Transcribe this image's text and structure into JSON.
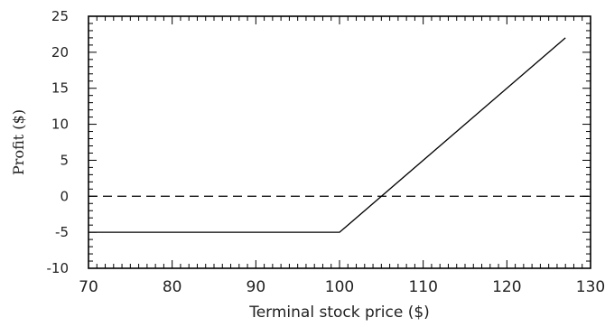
{
  "chart_data": {
    "type": "line",
    "title": "",
    "xlabel": "Terminal stock price ($)",
    "ylabel": "Profit ($)",
    "xlim": [
      70,
      130
    ],
    "ylim": [
      -10,
      25
    ],
    "x_ticks": [
      70,
      80,
      90,
      100,
      110,
      120,
      130
    ],
    "y_ticks": [
      -10,
      -5,
      0,
      5,
      10,
      15,
      20,
      25
    ],
    "x_tick_labels": [
      "70",
      "80",
      "90",
      "100",
      "110",
      "120",
      "130"
    ],
    "y_tick_labels": [
      "-10",
      "-5",
      "0",
      "5",
      "10",
      "15",
      "20",
      "25"
    ],
    "minor_ticks": true,
    "grid": false,
    "legend": "none",
    "series": [
      {
        "style": "solid",
        "color": "#000000",
        "x": [
          70,
          100,
          127
        ],
        "y": [
          -5,
          -5,
          22
        ]
      }
    ],
    "reference_lines": [
      {
        "orientation": "horizontal",
        "value": 0,
        "style": "dashed",
        "color": "#000000"
      }
    ]
  }
}
